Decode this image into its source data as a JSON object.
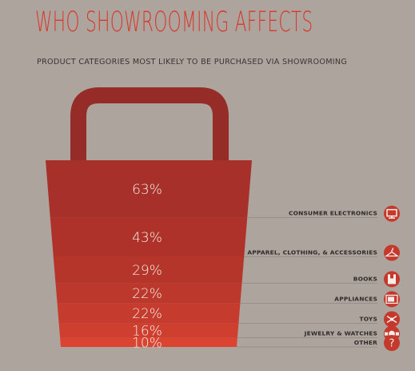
{
  "title": "WHO SHOWROOMING AFFECTS",
  "subtitle": "PRODUCT CATEGORIES MOST LIKELY TO BE PURCHASED VIA SHOWROOMING",
  "colors": {
    "background": "#ada49e",
    "accent": "#d63a2c",
    "bands": [
      "#a8302a",
      "#ae322a",
      "#b5352b",
      "#bc382c",
      "#c53b2d",
      "#cf3f2f",
      "#da4431"
    ],
    "handle": "#962c27",
    "icon": "#c4392c"
  },
  "chart_data": {
    "type": "bar",
    "categories": [
      "CONSUMER ELECTRONICS",
      "APPAREL, CLOTHING, & ACCESSORIES",
      "BOOKS",
      "APPLIANCES",
      "TOYS",
      "JEWELRY & WATCHES",
      "OTHER"
    ],
    "values": [
      63,
      43,
      29,
      22,
      22,
      16,
      10
    ],
    "value_labels": [
      "63%",
      "43%",
      "29%",
      "22%",
      "22%",
      "16%",
      "10%"
    ],
    "icons": [
      "monitor-icon",
      "hanger-icon",
      "book-icon",
      "microwave-icon",
      "toy-icon",
      "watch-icon",
      "question-icon"
    ],
    "title": "WHO SHOWROOMING AFFECTS",
    "unit": "%"
  }
}
